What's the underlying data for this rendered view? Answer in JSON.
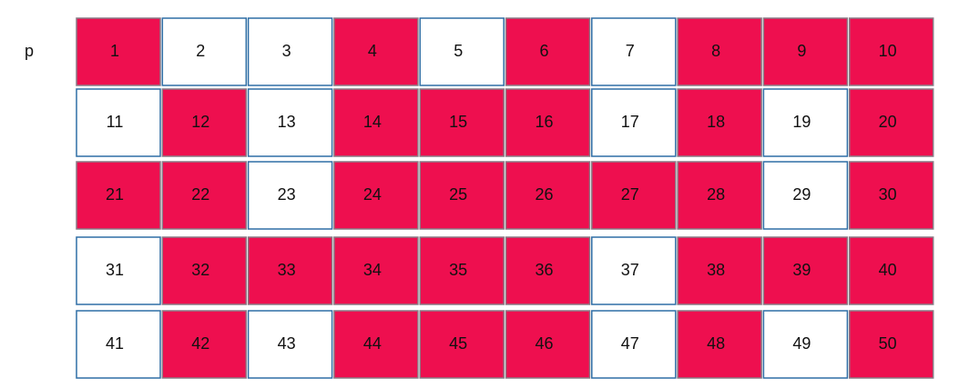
{
  "label": "p",
  "rows": [
    [
      {
        "text": "1",
        "highlighted": true
      },
      {
        "text": "2",
        "highlighted": false
      },
      {
        "text": "3",
        "highlighted": false
      },
      {
        "text": "4",
        "highlighted": true
      },
      {
        "text": "5",
        "highlighted": false
      },
      {
        "text": "6",
        "highlighted": true
      },
      {
        "text": "7",
        "highlighted": false
      },
      {
        "text": "8",
        "highlighted": true
      },
      {
        "text": "9",
        "highlighted": true
      },
      {
        "text": "10",
        "highlighted": true
      }
    ],
    [
      {
        "text": "11",
        "highlighted": false
      },
      {
        "text": "12",
        "highlighted": true
      },
      {
        "text": "13",
        "highlighted": false
      },
      {
        "text": "14",
        "highlighted": true
      },
      {
        "text": "15",
        "highlighted": true
      },
      {
        "text": "16",
        "highlighted": true
      },
      {
        "text": "17",
        "highlighted": false
      },
      {
        "text": "18",
        "highlighted": true
      },
      {
        "text": "19",
        "highlighted": false
      },
      {
        "text": "20",
        "highlighted": true
      }
    ],
    [
      {
        "text": "21",
        "highlighted": true
      },
      {
        "text": "22",
        "highlighted": true
      },
      {
        "text": "23",
        "highlighted": false
      },
      {
        "text": "24",
        "highlighted": true
      },
      {
        "text": "25",
        "highlighted": true
      },
      {
        "text": "26",
        "highlighted": true
      },
      {
        "text": "27",
        "highlighted": true
      },
      {
        "text": "28",
        "highlighted": true
      },
      {
        "text": "29",
        "highlighted": false
      },
      {
        "text": "30",
        "highlighted": true
      }
    ],
    [
      {
        "text": "31",
        "highlighted": false
      },
      {
        "text": "32",
        "highlighted": true
      },
      {
        "text": "33",
        "highlighted": true
      },
      {
        "text": "34",
        "highlighted": true
      },
      {
        "text": "35",
        "highlighted": true
      },
      {
        "text": "36",
        "highlighted": true
      },
      {
        "text": "37",
        "highlighted": false
      },
      {
        "text": "38",
        "highlighted": true
      },
      {
        "text": "39",
        "highlighted": true
      },
      {
        "text": "40",
        "highlighted": true
      }
    ],
    [
      {
        "text": "41",
        "highlighted": false
      },
      {
        "text": "42",
        "highlighted": true
      },
      {
        "text": "43",
        "highlighted": false
      },
      {
        "text": "44",
        "highlighted": true
      },
      {
        "text": "45",
        "highlighted": true
      },
      {
        "text": "46",
        "highlighted": true
      },
      {
        "text": "47",
        "highlighted": false
      },
      {
        "text": "48",
        "highlighted": true
      },
      {
        "text": "49",
        "highlighted": false
      },
      {
        "text": "50",
        "highlighted": true
      }
    ]
  ]
}
